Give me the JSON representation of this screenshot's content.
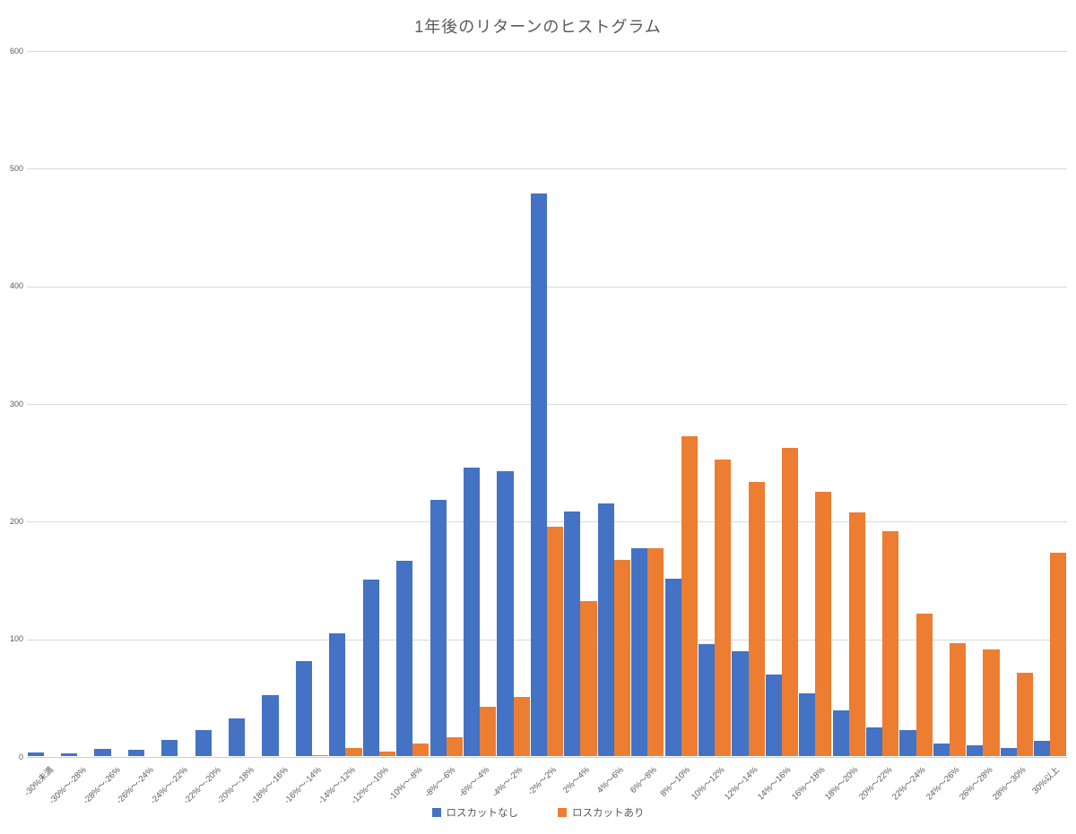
{
  "chart_data": {
    "type": "bar",
    "title": "1年後のリターンのヒストグラム",
    "xlabel": "",
    "ylabel": "",
    "ylim": [
      0,
      600
    ],
    "yticks": [
      0,
      100,
      200,
      300,
      400,
      500,
      600
    ],
    "grid": true,
    "legend_position": "bottom",
    "categories": [
      "-30%未満",
      "-30%～-28%",
      "-28%～-26%",
      "-26%～-24%",
      "-24%～-22%",
      "-22%～-20%",
      "-20%～-18%",
      "-18%～-16%",
      "-16%～-14%",
      "-14%～-12%",
      "-12%～-10%",
      "-10%～-8%",
      "-8%～-6%",
      "-6%～-4%",
      "-4%～-2%",
      "-2%～2%",
      "2%～4%",
      "4%～6%",
      "6%～8%",
      "8%～10%",
      "10%～12%",
      "12%～14%",
      "14%～16%",
      "16%～18%",
      "18%～20%",
      "20%～22%",
      "22%～24%",
      "24%～26%",
      "26%～28%",
      "28%～30%",
      "30%以上"
    ],
    "series": [
      {
        "name": "ロスカットなし",
        "color": "#4472C4",
        "values": [
          3,
          2,
          6,
          5,
          14,
          22,
          32,
          52,
          81,
          104,
          150,
          166,
          218,
          245,
          242,
          478,
          208,
          215,
          177,
          151,
          95,
          89,
          69,
          53,
          39,
          24,
          22,
          11,
          9,
          7,
          13
        ]
      },
      {
        "name": "ロスカットあり",
        "color": "#ED7D31",
        "values": [
          0,
          0,
          0,
          0,
          0,
          0,
          0,
          0,
          1,
          7,
          4,
          11,
          16,
          42,
          50,
          195,
          132,
          167,
          177,
          272,
          252,
          233,
          262,
          225,
          207,
          191,
          121,
          96,
          91,
          71,
          173
        ]
      }
    ],
    "colors": {
      "text": "#595959",
      "gridline": "#d9d9d9",
      "background": "#ffffff"
    }
  }
}
